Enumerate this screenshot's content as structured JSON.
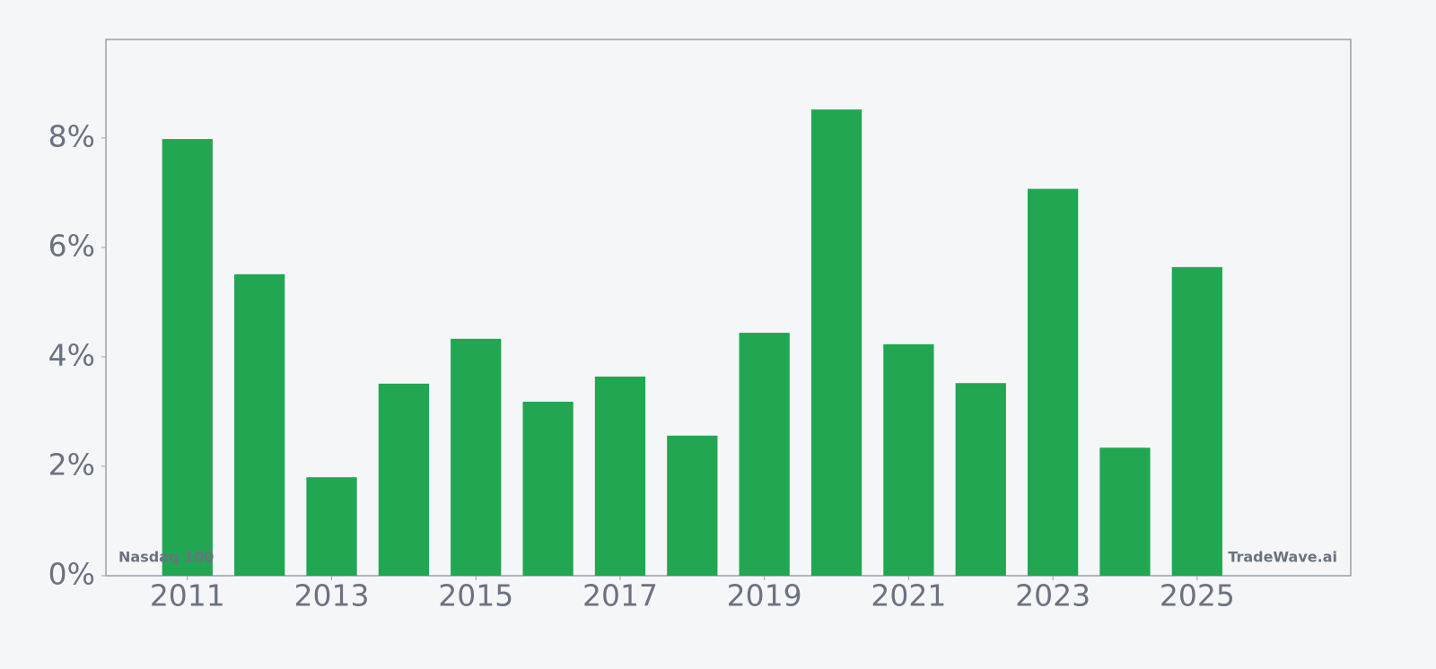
{
  "chart_data": {
    "type": "bar",
    "x": [
      2011,
      2012,
      2013,
      2014,
      2015,
      2016,
      2017,
      2018,
      2019,
      2020,
      2021,
      2022,
      2023,
      2024,
      2025
    ],
    "values": [
      7.98,
      5.51,
      1.8,
      3.51,
      4.33,
      3.18,
      3.64,
      2.56,
      4.44,
      8.52,
      4.23,
      3.52,
      7.07,
      2.34,
      5.64
    ],
    "color": "#22a652",
    "xlim": [
      2009.87,
      2027.13
    ],
    "xticks": [
      2011,
      2013,
      2015,
      2017,
      2019,
      2021,
      2023,
      2025
    ],
    "ylim": [
      0,
      9.8
    ],
    "yticks": [
      {
        "value": 0,
        "label": "0%"
      },
      {
        "value": 2,
        "label": "2%"
      },
      {
        "value": 4,
        "label": "4%"
      },
      {
        "value": 6,
        "label": "6%"
      },
      {
        "value": 8,
        "label": "8%"
      }
    ],
    "grid": false,
    "annotations": [
      "Nasdaq 100",
      "TradeWave.ai"
    ]
  }
}
